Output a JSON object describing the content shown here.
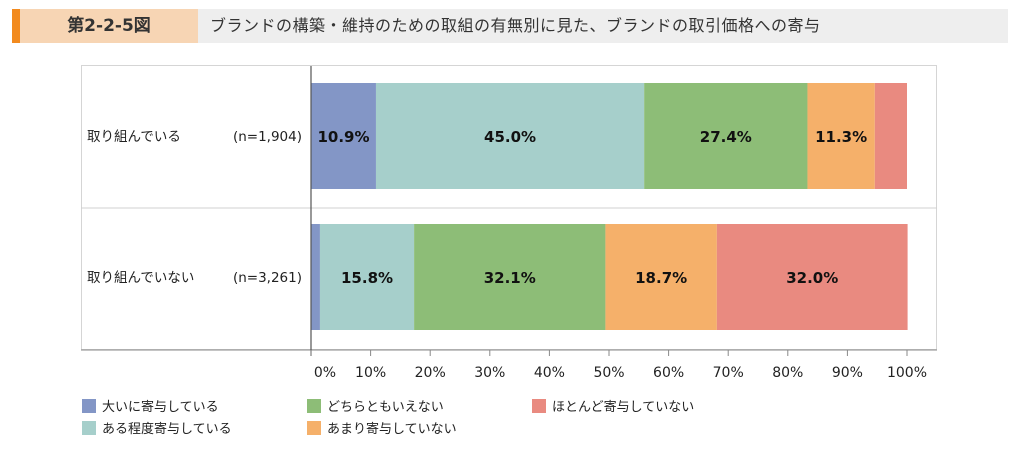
{
  "figure": {
    "tag": "第2-2-5図",
    "title": "ブランドの構築・維持のための取組の有無別に見た、ブランドの取引価格への寄与"
  },
  "colors": {
    "accent": "#f28a1e",
    "s1": "#8396c6",
    "s2": "#a6cfcb",
    "s3": "#8dbd77",
    "s4": "#f5b06a",
    "s5": "#e98a80"
  },
  "chart_data": {
    "type": "bar",
    "orientation": "horizontal",
    "stacked": true,
    "categories": [
      "取り組んでいる",
      "取り組んでいない"
    ],
    "category_counts": [
      "(n=1,904)",
      "(n=3,261)"
    ],
    "series": [
      {
        "name": "大いに寄与している",
        "values": [
          10.9,
          1.5
        ],
        "labels": [
          "10.9%",
          ""
        ]
      },
      {
        "name": "ある程度寄与している",
        "values": [
          45.0,
          15.8
        ],
        "labels": [
          "45.0%",
          "15.8%"
        ]
      },
      {
        "name": "どちらともいえない",
        "values": [
          27.4,
          32.1
        ],
        "labels": [
          "27.4%",
          "32.1%"
        ]
      },
      {
        "name": "あまり寄与していない",
        "values": [
          11.3,
          18.7
        ],
        "labels": [
          "11.3%",
          "18.7%"
        ]
      },
      {
        "name": "ほとんど寄与していない",
        "values": [
          5.4,
          32.0
        ],
        "labels": [
          "",
          "32.0%"
        ]
      }
    ],
    "xlim": [
      0,
      100
    ],
    "xticks": [
      "0%",
      "10%",
      "20%",
      "30%",
      "40%",
      "50%",
      "60%",
      "70%",
      "80%",
      "90%",
      "100%"
    ],
    "legend_order": [
      0,
      2,
      4,
      1,
      3
    ],
    "legend_position": "bottom",
    "grid": false
  }
}
